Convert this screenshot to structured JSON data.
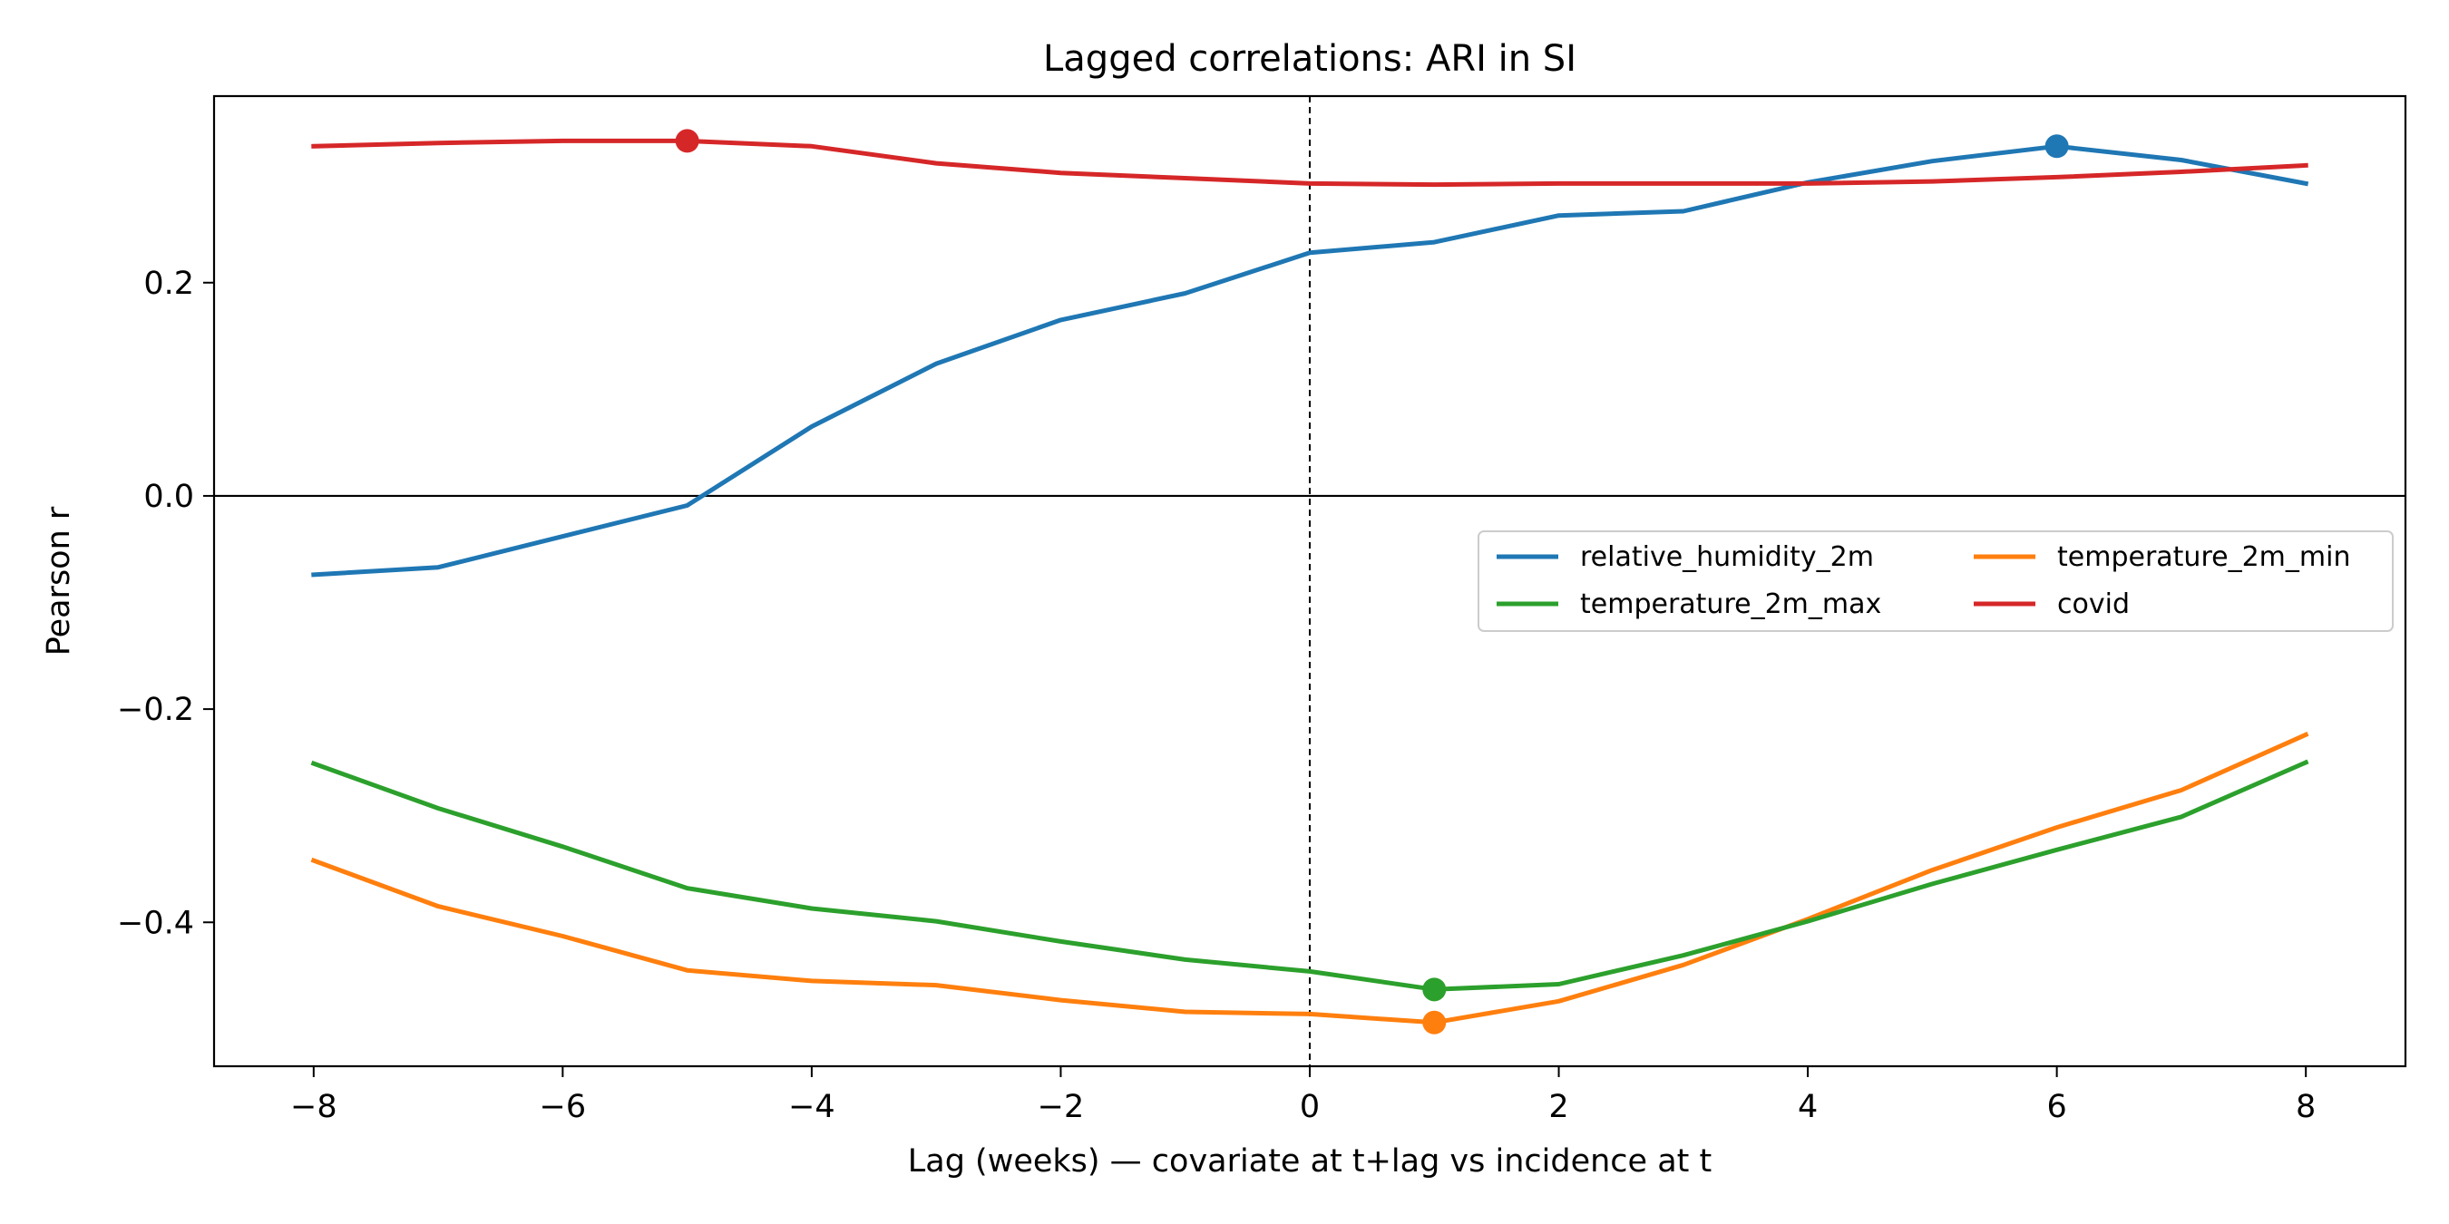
{
  "chart_data": {
    "type": "line",
    "title": "Lagged correlations: ARI in SI",
    "xlabel": "Lag (weeks) — covariate at t+lag vs incidence at t",
    "ylabel": "Pearson r",
    "xlim": [
      -8.8,
      8.8
    ],
    "ylim": [
      -0.535,
      0.375
    ],
    "xticks": [
      -8,
      -6,
      -4,
      -2,
      0,
      2,
      4,
      6,
      8
    ],
    "xtick_labels": [
      "−8",
      "−6",
      "−4",
      "−2",
      "0",
      "2",
      "4",
      "6",
      "8"
    ],
    "yticks": [
      0.2,
      0.0,
      -0.2,
      -0.4
    ],
    "ytick_labels": [
      "0.2",
      "0.0",
      "−0.2",
      "−0.4"
    ],
    "grid": false,
    "zero_line": true,
    "lag0_line": true,
    "legend_position": "center-right",
    "x": [
      -8,
      -7,
      -6,
      -5,
      -4,
      -3,
      -2,
      -1,
      0,
      1,
      2,
      3,
      4,
      5,
      6,
      7,
      8
    ],
    "series": [
      {
        "name": "relative_humidity_2m",
        "color": "#1f77b4",
        "values": [
          -0.074,
          -0.067,
          -0.038,
          -0.009,
          0.065,
          0.124,
          0.165,
          0.19,
          0.228,
          0.238,
          0.263,
          0.267,
          0.294,
          0.314,
          0.328,
          0.315,
          0.293
        ],
        "peak": [
          6,
          0.328
        ]
      },
      {
        "name": "temperature_2m_min",
        "color": "#ff7f0e",
        "values": [
          -0.342,
          -0.385,
          -0.413,
          -0.445,
          -0.455,
          -0.459,
          -0.473,
          -0.484,
          -0.486,
          -0.494,
          -0.474,
          -0.44,
          -0.397,
          -0.351,
          -0.311,
          -0.276,
          -0.224
        ],
        "peak": [
          1,
          -0.494
        ]
      },
      {
        "name": "temperature_2m_max",
        "color": "#2ca02c",
        "values": [
          -0.251,
          -0.293,
          -0.329,
          -0.368,
          -0.387,
          -0.399,
          -0.418,
          -0.435,
          -0.446,
          -0.463,
          -0.458,
          -0.431,
          -0.399,
          -0.364,
          -0.332,
          -0.301,
          -0.25
        ],
        "peak": [
          1,
          -0.463
        ]
      },
      {
        "name": "covid",
        "color": "#d62728",
        "values": [
          0.328,
          0.331,
          0.333,
          0.333,
          0.328,
          0.312,
          0.303,
          0.298,
          0.293,
          0.292,
          0.293,
          0.293,
          0.293,
          0.295,
          0.299,
          0.304,
          0.31
        ],
        "peak": [
          -5,
          0.333
        ]
      }
    ]
  }
}
